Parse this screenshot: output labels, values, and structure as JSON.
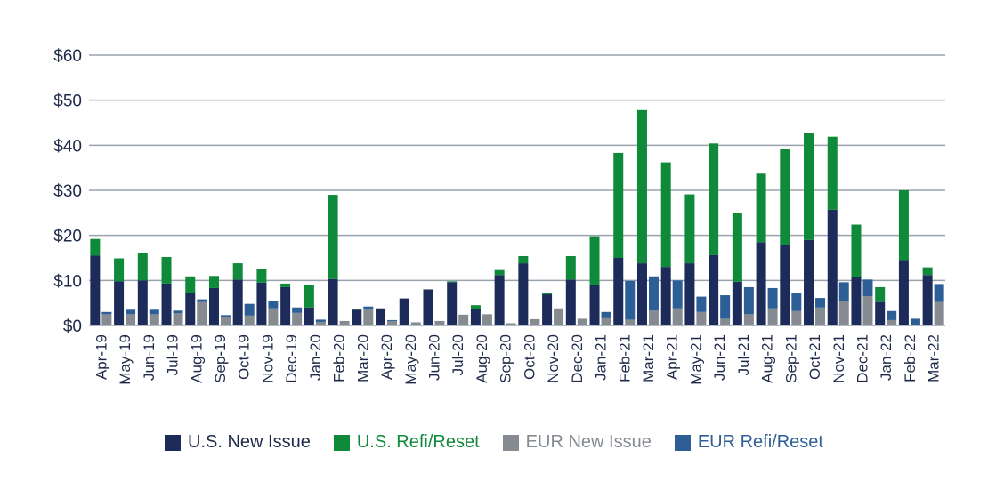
{
  "chart_data": {
    "type": "bar",
    "stacked": true,
    "categories": [
      "Apr-19",
      "May-19",
      "Jun-19",
      "Jul-19",
      "Aug-19",
      "Sep-19",
      "Oct-19",
      "Nov-19",
      "Dec-19",
      "Jan-20",
      "Feb-20",
      "Mar-20",
      "Apr-20",
      "May-20",
      "Jun-20",
      "Jul-20",
      "Aug-20",
      "Sep-20",
      "Oct-20",
      "Nov-20",
      "Dec-20",
      "Jan-21",
      "Feb-21",
      "Mar-21",
      "Apr-21",
      "May-21",
      "Jun-21",
      "Jul-21",
      "Aug-21",
      "Sep-21",
      "Oct-21",
      "Nov-21",
      "Dec-21",
      "Jan-22",
      "Feb-22",
      "Mar-22"
    ],
    "ylim": [
      0,
      60
    ],
    "yticks": [
      0,
      10,
      20,
      30,
      40,
      50,
      60
    ],
    "ytick_labels": [
      "$0",
      "$10",
      "$20",
      "$30",
      "$40",
      "$50",
      "$60"
    ],
    "grid": true,
    "legend_position": "bottom",
    "groups": [
      {
        "key": "us",
        "series": [
          {
            "name": "U.S. New Issue",
            "color": "#1c2b5a",
            "values": [
              15.5,
              9.8,
              10,
              9.3,
              7.2,
              8.3,
              10.2,
              9.5,
              8.5,
              4,
              10.3,
              3.5,
              3.8,
              6,
              8,
              9.6,
              3.7,
              11.2,
              13.8,
              6.9,
              10.2,
              9,
              15,
              13.8,
              13,
              13.8,
              15.6,
              9.7,
              18.5,
              17.8,
              19,
              25.7,
              10.8,
              5.2,
              14.5,
              11.2
            ]
          },
          {
            "name": "U.S. Refi/Reset",
            "color": "#0f8a3a",
            "values": [
              3.7,
              5.1,
              6,
              5.9,
              3.7,
              2.7,
              3.6,
              3.1,
              0.8,
              5,
              18.7,
              0.2,
              0,
              0,
              0,
              0.2,
              0.8,
              1.1,
              1.6,
              0.2,
              5.2,
              10.8,
              23.3,
              34,
              23.2,
              15.3,
              24.8,
              15.2,
              15.2,
              21.4,
              23.8,
              16.2,
              11.6,
              3.3,
              15.5,
              1.7
            ]
          }
        ]
      },
      {
        "key": "eur",
        "series": [
          {
            "name": "EUR New Issue",
            "color": "#858b91",
            "values": [
              2.5,
              2.5,
              2.5,
              2.7,
              5.2,
              1.8,
              2.2,
              3.8,
              2.8,
              0.8,
              1,
              3.5,
              1,
              0.7,
              1,
              2.4,
              2.5,
              0.5,
              1.4,
              3.8,
              1.5,
              1.6,
              1.3,
              3.3,
              3.8,
              3,
              1.5,
              2.5,
              3.8,
              3.2,
              4,
              5.5,
              6.5,
              1.2,
              0,
              5.2
            ]
          },
          {
            "name": "EUR Refi/Reset",
            "color": "#2d5f96",
            "values": [
              0.5,
              1,
              1,
              0.6,
              0.6,
              0.5,
              2.6,
              1.7,
              1.2,
              0.5,
              0,
              0.7,
              0.2,
              0,
              0,
              0,
              0,
              0,
              0,
              0,
              0,
              1.4,
              8.6,
              7.6,
              6.2,
              3.4,
              5.2,
              6,
              4.5,
              3.9,
              2.1,
              4.1,
              3.7,
              2,
              1.5,
              4
            ]
          }
        ]
      }
    ]
  }
}
